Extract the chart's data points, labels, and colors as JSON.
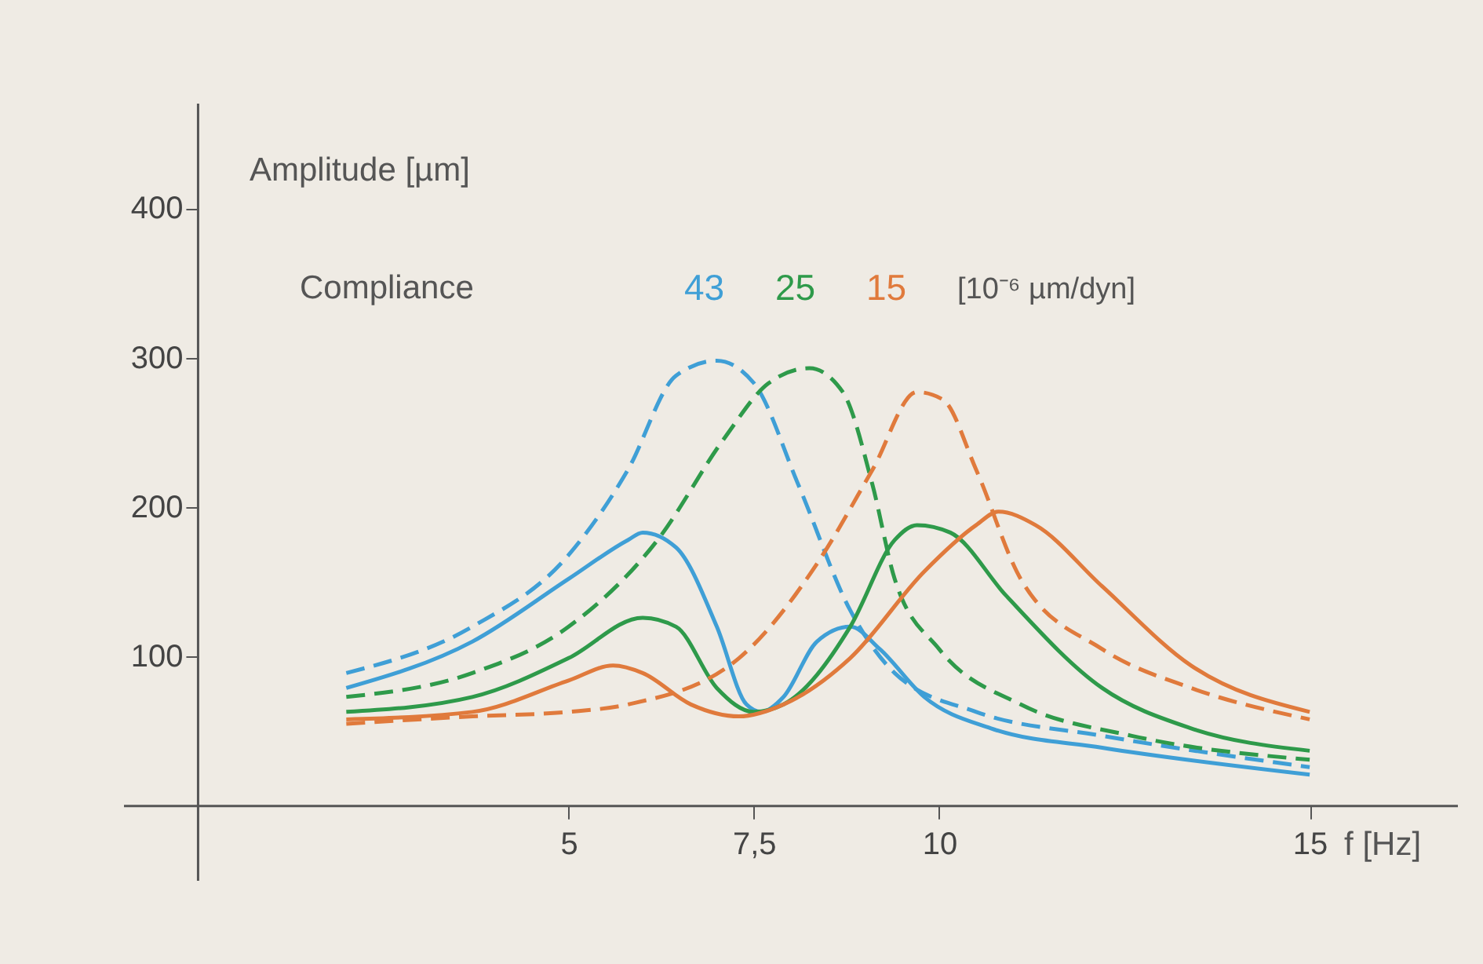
{
  "chart_data": {
    "type": "line",
    "xlabel": "f [Hz]",
    "ylabel": "Amplitude [µm]",
    "legend_title": "Compliance",
    "legend": "top left",
    "annotations": [
      "[10⁻⁶ µm/dyn]"
    ],
    "xlim": [
      -1,
      17
    ],
    "ylim": [
      -50,
      470
    ],
    "xticks": [
      5,
      {
        "value": 7.5,
        "label": "7,5"
      },
      10,
      15
    ],
    "yticks": [
      100,
      200,
      300,
      400
    ],
    "grid": false,
    "series": [
      {
        "name": "43",
        "color": "#3f9fd6",
        "line_style": "dashed",
        "x": [
          2,
          3.7,
          5,
          5.8,
          6.45,
          7.0,
          7.5,
          8.1,
          8.8,
          9.4,
          10.5,
          12.2,
          15
        ],
        "values": [
          89,
          120,
          168,
          225,
          288,
          298,
          283,
          215,
          131,
          89,
          63,
          47,
          26
        ]
      },
      {
        "color": "#3f9fd6",
        "line_style": "solid",
        "x": [
          2,
          3.7,
          5,
          5.8,
          6.0,
          6.45,
          7.0,
          7.4,
          7.6,
          7.9,
          8.35,
          8.8,
          9.2,
          9.8,
          10.7,
          12.2,
          15
        ],
        "values": [
          79,
          110,
          152,
          178,
          183,
          173,
          120,
          68,
          63,
          73,
          110,
          120,
          105,
          73,
          52,
          39,
          21
        ]
      },
      {
        "name": "25",
        "color": "#2e9a4a",
        "line_style": "dashed",
        "x": [
          2,
          3.7,
          5,
          6.2,
          7.1,
          7.7,
          8.25,
          8.7,
          9.1,
          9.4,
          10,
          11.1,
          12.6,
          15
        ],
        "values": [
          73,
          89,
          120,
          178,
          246,
          283,
          293,
          277,
          215,
          152,
          105,
          68,
          47,
          31
        ]
      },
      {
        "color": "#2e9a4a",
        "line_style": "solid",
        "x": [
          2,
          3.7,
          5,
          6.0,
          6.45,
          7.0,
          7.5,
          7.9,
          8.8,
          9.4,
          9.7,
          10.15,
          10.9,
          12.2,
          13.4,
          15
        ],
        "values": [
          63,
          73,
          99,
          126,
          120,
          79,
          63,
          68,
          120,
          178,
          188,
          183,
          141,
          79,
          52,
          37
        ]
      },
      {
        "name": "15",
        "color": "#e07a3c",
        "line_style": "dashed",
        "x": [
          2,
          3.7,
          5,
          5.8,
          7.3,
          8.35,
          9.1,
          9.7,
          10.05,
          10.5,
          11.1,
          12.2,
          13.4,
          15
        ],
        "values": [
          55,
          60,
          63,
          68,
          99,
          162,
          225,
          277,
          272,
          225,
          152,
          105,
          79,
          58
        ]
      },
      {
        "color": "#e07a3c",
        "line_style": "solid",
        "x": [
          2,
          3.7,
          5,
          5.6,
          6.0,
          6.65,
          7.3,
          7.9,
          8.8,
          9.8,
          10.5,
          10.8,
          11.3,
          12.2,
          13.4,
          15
        ],
        "values": [
          58,
          63,
          84,
          94,
          89,
          68,
          60,
          68,
          99,
          157,
          188,
          197,
          188,
          147,
          94,
          63
        ]
      }
    ]
  }
}
